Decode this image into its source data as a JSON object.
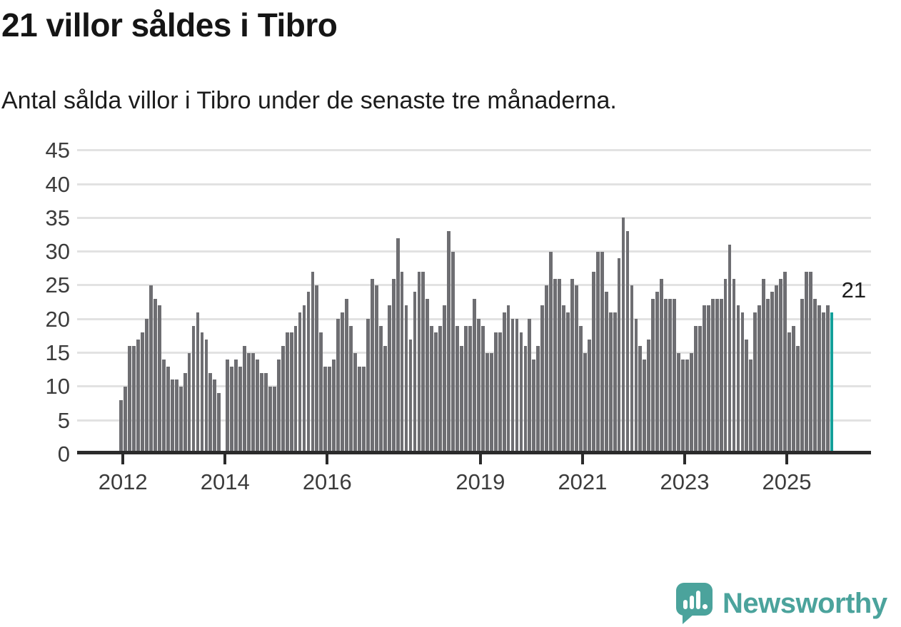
{
  "header": {
    "title": "21 villor såldes i Tibro",
    "subtitle": "Antal sålda villor i Tibro under de senaste tre månaderna."
  },
  "chart_data": {
    "type": "bar",
    "title": "21 villor såldes i Tibro",
    "subtitle": "Antal sålda villor i Tibro under de senaste tre månaderna.",
    "ylabel": "",
    "xlabel": "",
    "x_start_year": 2012,
    "x_interval": "monthly",
    "ylim": [
      0,
      45
    ],
    "yticks": [
      0,
      5,
      10,
      15,
      20,
      25,
      30,
      35,
      40,
      45
    ],
    "xticks": [
      2012,
      2014,
      2016,
      2019,
      2021,
      2023,
      2025
    ],
    "grid": true,
    "bar_color": "#6e6e72",
    "highlight_color": "#14a09a",
    "highlight_last": true,
    "last_value": 21,
    "annotation": {
      "text": "21"
    },
    "values": [
      8,
      10,
      16,
      16,
      17,
      18,
      20,
      25,
      23,
      22,
      14,
      13,
      11,
      11,
      10,
      12,
      15,
      19,
      21,
      18,
      17,
      12,
      11,
      9,
      null,
      14,
      13,
      14,
      13,
      16,
      15,
      15,
      14,
      12,
      12,
      10,
      10,
      14,
      16,
      18,
      18,
      19,
      21,
      22,
      24,
      27,
      25,
      18,
      13,
      13,
      14,
      20,
      21,
      23,
      19,
      15,
      13,
      13,
      20,
      26,
      25,
      19,
      16,
      22,
      26,
      32,
      27,
      22,
      17,
      24,
      27,
      27,
      23,
      19,
      18,
      19,
      22,
      33,
      30,
      19,
      16,
      19,
      19,
      23,
      20,
      19,
      15,
      15,
      18,
      18,
      21,
      22,
      20,
      20,
      18,
      16,
      20,
      14,
      16,
      22,
      25,
      30,
      26,
      26,
      22,
      21,
      26,
      25,
      19,
      15,
      17,
      27,
      30,
      30,
      24,
      21,
      21,
      29,
      35,
      33,
      25,
      20,
      16,
      14,
      17,
      23,
      24,
      26,
      23,
      23,
      23,
      15,
      14,
      14,
      15,
      19,
      19,
      22,
      22,
      23,
      23,
      23,
      26,
      31,
      26,
      22,
      21,
      17,
      14,
      21,
      22,
      26,
      23,
      24,
      25,
      26,
      27,
      18,
      19,
      16,
      23,
      27,
      27,
      23,
      22,
      21,
      22,
      21
    ]
  },
  "footer": {
    "brand": "Newsworthy",
    "brand_color": "#4ba39c",
    "logo_icon": "speech-bubble-bar-chart-icon"
  }
}
